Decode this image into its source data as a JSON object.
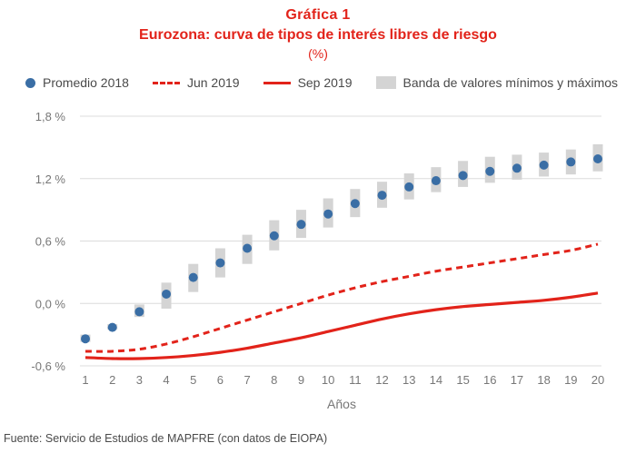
{
  "header": {
    "title_line1": "Gráfica  1",
    "title_line2": "Eurozona: curva de tipos de interés libres de riesgo",
    "title_line3": "(%)"
  },
  "legend": {
    "promedio": "Promedio 2018",
    "jun": "Jun 2019",
    "sep": "Sep 2019",
    "banda": "Banda de valores mínimos y máximos"
  },
  "source": "Fuente: Servicio de Estudios de MAPFRE (con datos de EIOPA)",
  "colors": {
    "accent_red": "#e2231a",
    "dot_blue": "#3a6ea5",
    "band_gray": "#d4d4d4"
  },
  "chart_data": {
    "type": "line",
    "xlabel": "Años",
    "ylabel": "",
    "x": [
      1,
      2,
      3,
      4,
      5,
      6,
      7,
      8,
      9,
      10,
      11,
      12,
      13,
      14,
      15,
      16,
      17,
      18,
      19,
      20
    ],
    "ylim": [
      -0.6,
      1.8
    ],
    "yticks": [
      -0.6,
      0.0,
      0.6,
      1.2,
      1.8
    ],
    "ytick_labels": [
      "-0,6 %",
      "0,0 %",
      "0,6 %",
      "1,2 %",
      "1,8 %"
    ],
    "grid": true,
    "legend_position": "top",
    "series": [
      {
        "name": "Promedio 2018",
        "style": "dots",
        "values": [
          -0.34,
          -0.23,
          -0.08,
          0.09,
          0.25,
          0.39,
          0.53,
          0.65,
          0.76,
          0.86,
          0.96,
          1.04,
          1.12,
          1.18,
          1.23,
          1.27,
          1.3,
          1.33,
          1.36,
          1.39
        ]
      },
      {
        "name": "Banda de valores mínimos y máximos",
        "style": "band",
        "low": [
          -0.37,
          -0.25,
          -0.13,
          -0.05,
          0.11,
          0.25,
          0.38,
          0.51,
          0.63,
          0.73,
          0.83,
          0.92,
          1.0,
          1.07,
          1.12,
          1.16,
          1.19,
          1.22,
          1.24,
          1.27
        ],
        "high": [
          -0.3,
          -0.2,
          -0.01,
          0.2,
          0.38,
          0.53,
          0.66,
          0.8,
          0.9,
          1.01,
          1.1,
          1.17,
          1.25,
          1.31,
          1.37,
          1.41,
          1.43,
          1.45,
          1.48,
          1.53
        ]
      },
      {
        "name": "Jun 2019",
        "style": "dashed",
        "values": [
          -0.46,
          -0.46,
          -0.44,
          -0.39,
          -0.32,
          -0.24,
          -0.16,
          -0.08,
          0.0,
          0.08,
          0.15,
          0.21,
          0.26,
          0.31,
          0.35,
          0.39,
          0.43,
          0.47,
          0.51,
          0.57
        ]
      },
      {
        "name": "Sep 2019",
        "style": "solid",
        "values": [
          -0.52,
          -0.53,
          -0.53,
          -0.52,
          -0.5,
          -0.47,
          -0.43,
          -0.38,
          -0.33,
          -0.27,
          -0.21,
          -0.15,
          -0.1,
          -0.06,
          -0.03,
          -0.01,
          0.01,
          0.03,
          0.06,
          0.1
        ]
      }
    ]
  }
}
